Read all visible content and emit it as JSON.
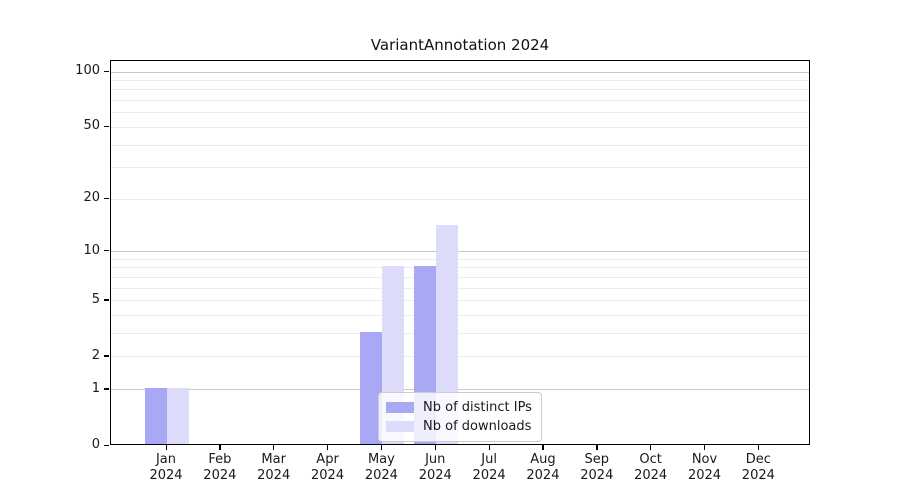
{
  "chart_data": {
    "type": "bar",
    "title": "VariantAnnotation 2024",
    "categories": [
      {
        "month": "Jan",
        "year": "2024"
      },
      {
        "month": "Feb",
        "year": "2024"
      },
      {
        "month": "Mar",
        "year": "2024"
      },
      {
        "month": "Apr",
        "year": "2024"
      },
      {
        "month": "May",
        "year": "2024"
      },
      {
        "month": "Jun",
        "year": "2024"
      },
      {
        "month": "Jul",
        "year": "2024"
      },
      {
        "month": "Aug",
        "year": "2024"
      },
      {
        "month": "Sep",
        "year": "2024"
      },
      {
        "month": "Oct",
        "year": "2024"
      },
      {
        "month": "Nov",
        "year": "2024"
      },
      {
        "month": "Dec",
        "year": "2024"
      }
    ],
    "series": [
      {
        "name": "Nb of distinct IPs",
        "color": "#a8a8f4",
        "values": [
          1,
          0,
          0,
          0,
          3,
          8,
          0,
          0,
          0,
          0,
          0,
          0
        ]
      },
      {
        "name": "Nb of downloads",
        "color": "#dcdcfa",
        "values": [
          1,
          0,
          0,
          0,
          8,
          14,
          0,
          0,
          0,
          0,
          0,
          0
        ]
      }
    ],
    "y_axis": {
      "scale": "log10(1+v)",
      "ticks": [
        0,
        1,
        2,
        5,
        10,
        20,
        50,
        100
      ],
      "range": [
        0,
        100
      ]
    },
    "grid": {
      "on": true,
      "minor_values": [
        2,
        3,
        4,
        5,
        6,
        7,
        8,
        9,
        20,
        30,
        40,
        50,
        60,
        70,
        80,
        90
      ],
      "major_values": [
        1,
        10,
        100
      ],
      "minor_color": "#ececec",
      "major_color": "#c8c8c8"
    },
    "legend": {
      "position": "lower-center"
    },
    "colors": {
      "spine": "#000000",
      "text": "#1a1a1a",
      "legend_border": "#cccccc",
      "background": "#ffffff"
    }
  }
}
